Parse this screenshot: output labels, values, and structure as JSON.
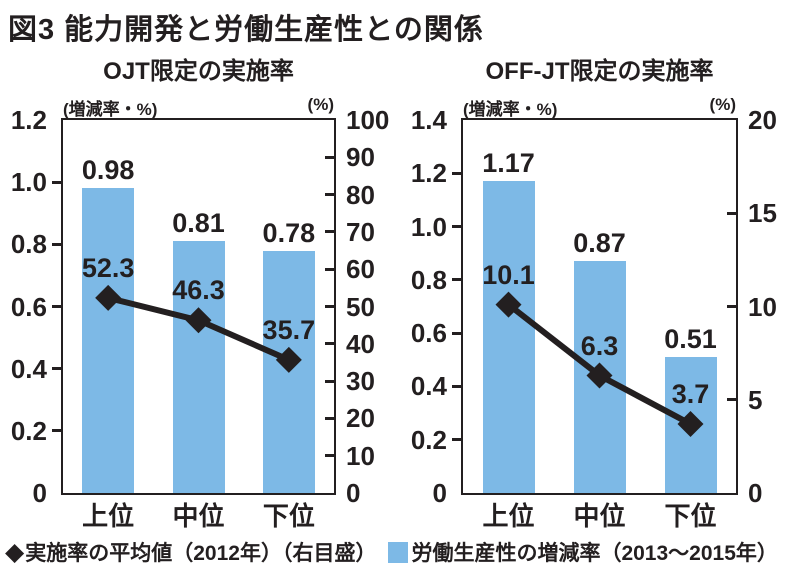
{
  "title": "図3 能力開発と労働生産性との関係",
  "colors": {
    "ink": "#231f20",
    "bar_blue": "#7db9e6",
    "background": "#ffffff"
  },
  "legend": [
    {
      "glyph": "◆",
      "label": "実施率の平均値（2012年）（右目盛）",
      "color": "#231f20"
    },
    {
      "glyph": "square",
      "label": "労働生産性の増減率（2013～2015年）",
      "color": "#7db9e6"
    }
  ],
  "chart_data": [
    {
      "type": "bar",
      "title": "OJT限定の実施率",
      "categories": [
        "上位",
        "中位",
        "下位"
      ],
      "series": [
        {
          "name": "労働生産性の増減率（2013～2015年）",
          "type": "bar",
          "axis": "left",
          "values": [
            0.98,
            0.81,
            0.78
          ],
          "labels": [
            "0.98",
            "0.81",
            "0.78"
          ],
          "color": "#7db9e6"
        },
        {
          "name": "実施率の平均値（2012年）（右目盛）",
          "type": "line",
          "axis": "right",
          "marker": "diamond",
          "values": [
            52.3,
            46.3,
            35.7
          ],
          "labels": [
            "52.3",
            "46.3",
            "35.7"
          ],
          "color": "#231f20"
        }
      ],
      "left_axis": {
        "title": "(増減率・%)",
        "min": 0,
        "max": 1.2,
        "tick_labels": [
          "1.2",
          "1.0",
          "0.8",
          "0.6",
          "0.4",
          "0.2",
          "0"
        ]
      },
      "right_axis": {
        "title": "(%)",
        "min": 0,
        "max": 100,
        "tick_labels": [
          "100",
          "90",
          "80",
          "70",
          "60",
          "50",
          "40",
          "30",
          "20",
          "10",
          "0"
        ]
      },
      "grid": false,
      "legend_position": "bottom"
    },
    {
      "type": "bar",
      "title": "OFF-JT限定の実施率",
      "categories": [
        "上位",
        "中位",
        "下位"
      ],
      "series": [
        {
          "name": "労働生産性の増減率（2013～2015年）",
          "type": "bar",
          "axis": "left",
          "values": [
            1.17,
            0.87,
            0.51
          ],
          "labels": [
            "1.17",
            "0.87",
            "0.51"
          ],
          "color": "#7db9e6"
        },
        {
          "name": "実施率の平均値（2012年）（右目盛）",
          "type": "line",
          "axis": "right",
          "marker": "diamond",
          "values": [
            10.1,
            6.3,
            3.7
          ],
          "labels": [
            "10.1",
            "6.3",
            "3.7"
          ],
          "color": "#231f20"
        }
      ],
      "left_axis": {
        "title": "(増減率・%)",
        "min": 0,
        "max": 1.4,
        "tick_labels": [
          "1.4",
          "1.2",
          "1.0",
          "0.8",
          "0.6",
          "0.4",
          "0.2",
          "0"
        ]
      },
      "right_axis": {
        "title": "(%)",
        "min": 0,
        "max": 20,
        "tick_labels": [
          "20",
          "15",
          "10",
          "5",
          "0"
        ]
      },
      "grid": false,
      "legend_position": "bottom"
    }
  ]
}
